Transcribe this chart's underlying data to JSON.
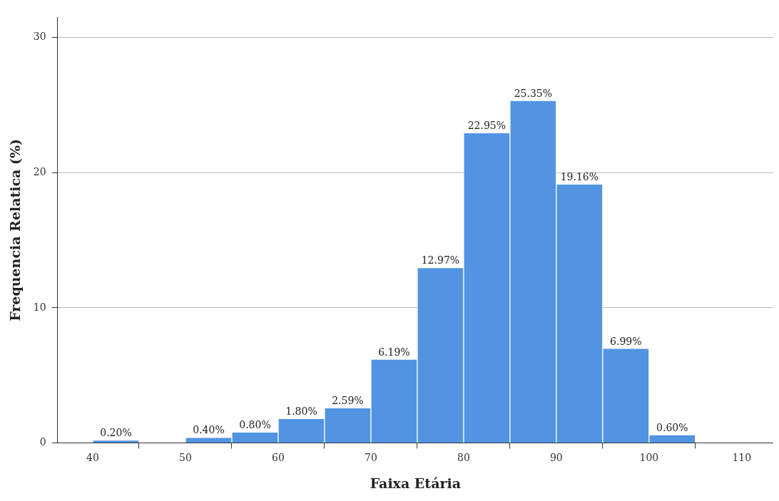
{
  "chart_data": {
    "type": "histogram",
    "xlabel": "Faixa Etária",
    "ylabel": "Frequencia Relatica (%)",
    "bins": [
      40,
      45,
      50,
      55,
      60,
      65,
      70,
      75,
      80,
      85,
      90,
      95,
      100,
      105
    ],
    "values": [
      0.2,
      0,
      0.4,
      0.8,
      1.8,
      2.59,
      6.19,
      12.97,
      22.95,
      25.35,
      19.16,
      6.99,
      0.6
    ],
    "value_labels": [
      "0.20%",
      null,
      "0.40%",
      "0.80%",
      "1.80%",
      "2.59%",
      "6.19%",
      "12.97%",
      "22.95%",
      "25.35%",
      "19.16%",
      "6.99%",
      "0.60%"
    ],
    "color": "#5294e2",
    "xlim": [
      36.2,
      113.4
    ],
    "xticks": [
      40,
      50,
      60,
      70,
      80,
      90,
      100,
      110
    ],
    "ylim": [
      0,
      31.5
    ],
    "yticks": [
      0,
      10,
      20,
      30
    ],
    "grid": "y",
    "legend": false
  }
}
